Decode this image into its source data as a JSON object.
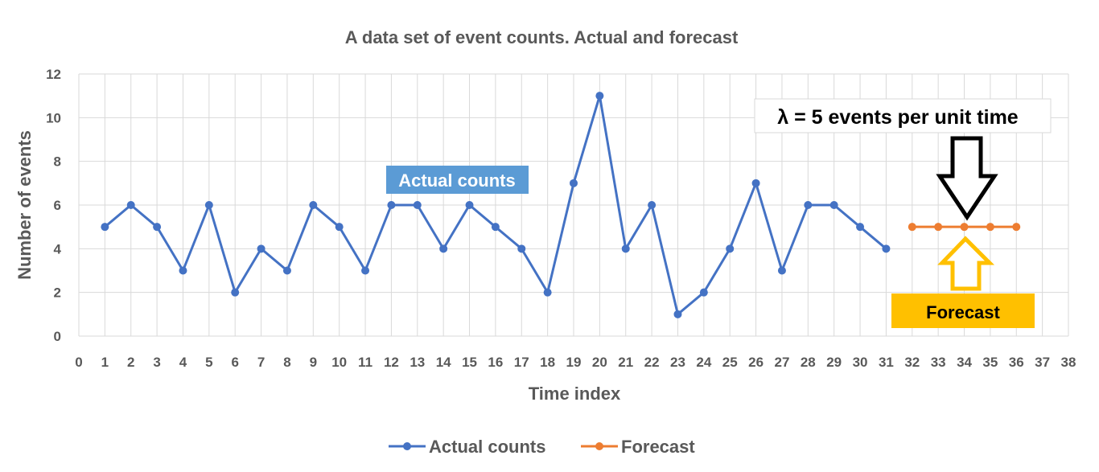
{
  "chart_data": {
    "type": "line",
    "title": "A data set of event counts. Actual and forecast",
    "xlabel": "Time index",
    "ylabel": "Number of events",
    "xlim": [
      0,
      38
    ],
    "ylim": [
      0,
      12
    ],
    "x_ticks": [
      0,
      1,
      2,
      3,
      4,
      5,
      6,
      7,
      8,
      9,
      10,
      11,
      12,
      13,
      14,
      15,
      16,
      17,
      18,
      19,
      20,
      21,
      22,
      23,
      24,
      25,
      26,
      27,
      28,
      29,
      30,
      31,
      32,
      33,
      34,
      35,
      36,
      37,
      38
    ],
    "y_ticks": [
      0,
      2,
      4,
      6,
      8,
      10,
      12
    ],
    "grid": true,
    "legend_position": "bottom",
    "series": [
      {
        "name": "Actual counts",
        "color": "#4472c4",
        "x": [
          1,
          2,
          3,
          4,
          5,
          6,
          7,
          8,
          9,
          10,
          11,
          12,
          13,
          14,
          15,
          16,
          17,
          18,
          19,
          20,
          21,
          22,
          23,
          24,
          25,
          26,
          27,
          28,
          29,
          30,
          31
        ],
        "values": [
          5,
          6,
          5,
          3,
          6,
          2,
          4,
          3,
          6,
          5,
          3,
          6,
          6,
          4,
          6,
          5,
          4,
          2,
          7,
          11,
          4,
          6,
          1,
          2,
          4,
          7,
          3,
          6,
          6,
          5,
          4
        ]
      },
      {
        "name": "Forecast",
        "color": "#ed7d31",
        "x": [
          32,
          33,
          34,
          35,
          36
        ],
        "values": [
          5,
          5,
          5,
          5,
          5
        ]
      }
    ],
    "annotations": {
      "actual_label": "Actual counts",
      "lambda_label": "λ = 5 events per unit time",
      "forecast_label": "Forecast"
    }
  },
  "colors": {
    "actual_label_bg": "#5b9bd5",
    "forecast_label_bg": "#ffc000",
    "forecast_arrow": "#ffc000",
    "lambda_arrow": "#000000"
  }
}
